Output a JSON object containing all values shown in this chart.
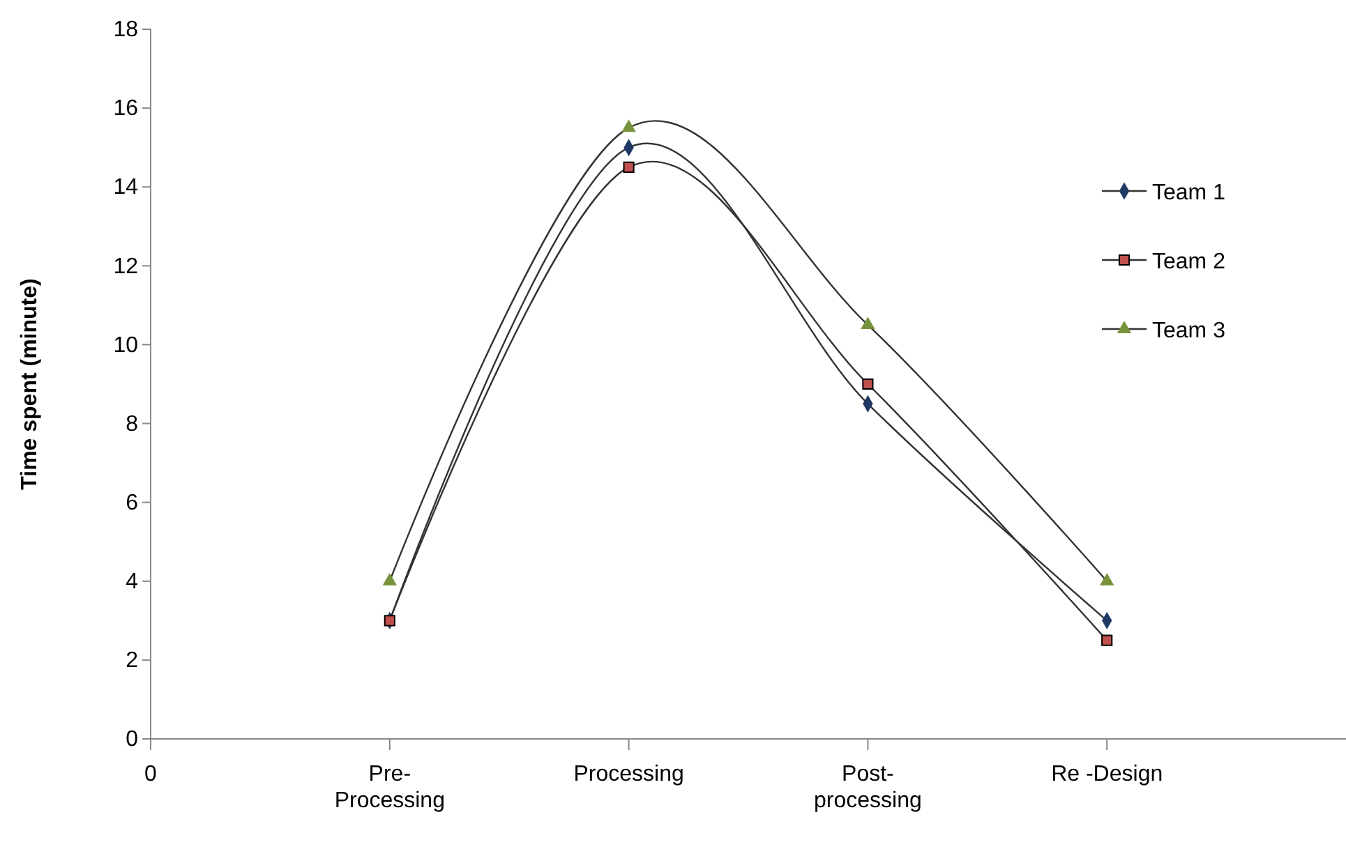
{
  "chart_data": {
    "type": "line",
    "ylabel": "Time spent (minute)",
    "categories": [
      "0",
      "Pre-Processing",
      "Processing",
      "Post-processing",
      "Re -Design",
      null
    ],
    "ylim": [
      0,
      18
    ],
    "yticks": [
      0,
      2,
      4,
      6,
      8,
      10,
      12,
      14,
      16,
      18
    ],
    "grid": false,
    "legend": "right",
    "series": [
      {
        "name": "Team 1",
        "color": "#1f3864",
        "marker": "diamond",
        "values": [
          null,
          3,
          15,
          8.5,
          3,
          null
        ]
      },
      {
        "name": "Team 2",
        "color": "#c0504d",
        "marker": "square",
        "values": [
          null,
          3,
          14.5,
          9,
          2.5,
          null
        ]
      },
      {
        "name": "Team 3",
        "color": "#77933c",
        "marker": "triangle",
        "values": [
          null,
          4,
          15.5,
          10.5,
          4,
          null
        ]
      }
    ]
  }
}
